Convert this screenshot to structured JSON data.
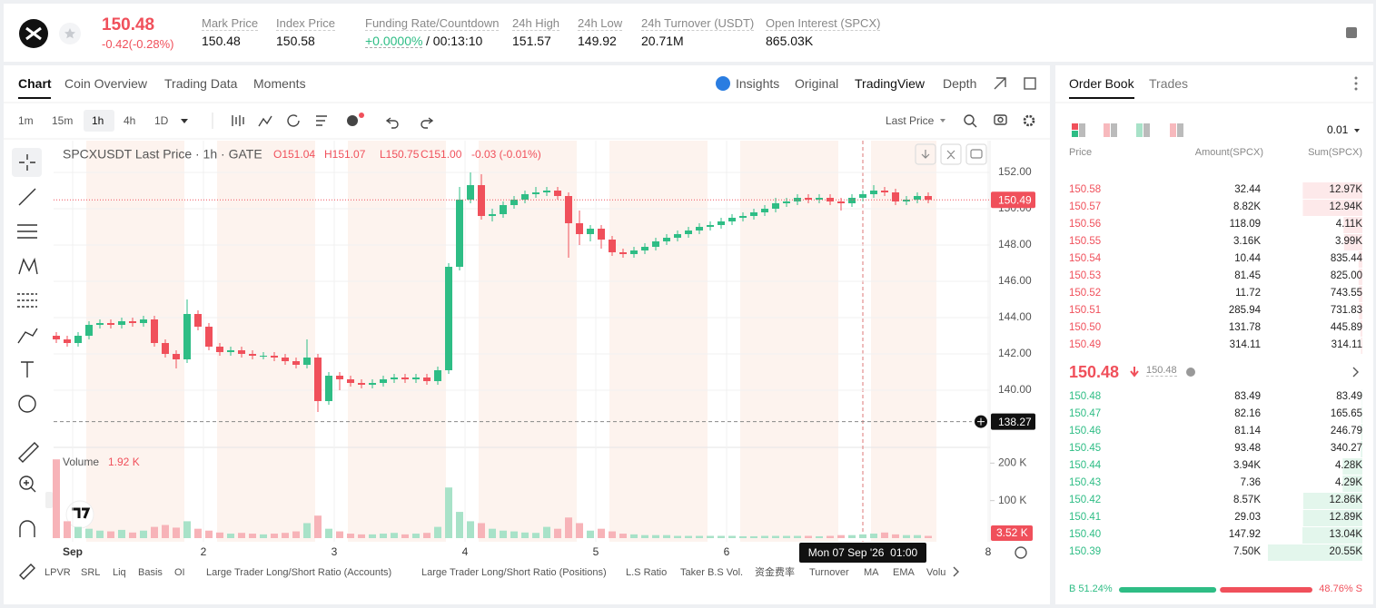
{
  "header": {
    "price": "150.48",
    "change": "-0.42(-0.28%)",
    "stats": [
      {
        "label": "Mark Price",
        "value": "150.48"
      },
      {
        "label": "Index Price",
        "value": "150.58"
      },
      {
        "label": "Funding Rate/Countdown",
        "value": "+0.0000%",
        "countdown": "/ 00:13:10"
      },
      {
        "label": "24h High",
        "value": "151.57"
      },
      {
        "label": "24h Low",
        "value": "149.92"
      },
      {
        "label": "24h Turnover (USDT)",
        "value": "20.71M"
      },
      {
        "label": "Open Interest (SPCX)",
        "value": "865.03K"
      }
    ]
  },
  "tabs": [
    "Chart",
    "Coin Overview",
    "Trading Data",
    "Moments"
  ],
  "view_tabs": [
    "Insights",
    "Original",
    "TradingView",
    "Depth"
  ],
  "intervals": [
    "1m",
    "15m",
    "1h",
    "4h",
    "1D"
  ],
  "price_type": "Last Price",
  "indicators": [
    "LPVR",
    "SRL",
    "Liq",
    "Basis",
    "OI",
    "Large Trader Long/Short Ratio (Accounts)",
    "Large Trader Long/Short Ratio (Positions)",
    "L.S Ratio",
    "Taker B.S Vol.",
    "资金费率",
    "Turnover",
    "MA",
    "EMA",
    "Volu"
  ],
  "chart_data": {
    "type": "candlestick",
    "title": "SPCXUSDT Last Price · 1h · GATE",
    "ohlc_legend": [
      "O151.04",
      "H151.07",
      "L150.75",
      "C151.00",
      "-0.03 (-0.01%)"
    ],
    "up_color": "#2ebd85",
    "down_color": "#f0505b",
    "open": [
      143.0,
      142.8,
      142.6,
      143.0,
      143.6,
      143.7,
      143.6,
      143.8,
      143.7,
      143.9,
      142.6,
      142.0,
      141.7,
      144.2,
      143.5,
      142.4,
      142.1,
      142.2,
      142.0,
      141.9,
      141.9,
      141.8,
      141.6,
      141.4,
      141.8,
      139.4,
      140.8,
      140.6,
      140.4,
      140.3,
      140.4,
      140.6,
      140.7,
      140.6,
      140.7,
      140.5,
      141.1,
      146.8,
      150.5,
      151.3,
      149.6,
      149.7,
      150.2,
      150.5,
      150.8,
      150.9,
      151.0,
      150.7,
      149.2,
      148.6,
      148.9,
      148.3,
      147.6,
      147.5,
      147.7,
      147.9,
      148.2,
      148.4,
      148.6,
      148.8,
      149.0,
      149.1,
      149.3,
      149.5,
      149.6,
      149.8,
      150.0,
      150.3,
      150.4,
      150.6,
      150.5,
      150.6,
      150.4,
      150.3,
      150.6,
      150.8,
      151.0,
      150.9,
      150.4,
      150.5,
      150.7
    ],
    "high": [
      143.2,
      143.0,
      143.2,
      143.8,
      143.9,
      143.9,
      144.0,
      144.0,
      144.1,
      144.1,
      142.8,
      142.2,
      145.0,
      144.4,
      143.7,
      142.6,
      142.4,
      142.4,
      142.2,
      142.1,
      142.1,
      142.0,
      141.8,
      142.8,
      142.0,
      141.0,
      141.0,
      140.8,
      140.6,
      140.6,
      140.8,
      140.9,
      140.9,
      140.9,
      140.9,
      141.3,
      147.0,
      151.2,
      152.0,
      151.9,
      150.0,
      150.4,
      150.7,
      151.0,
      151.2,
      151.2,
      151.2,
      150.9,
      149.9,
      149.1,
      149.1,
      148.5,
      147.8,
      147.9,
      148.1,
      148.4,
      148.6,
      148.8,
      149.0,
      149.2,
      149.3,
      149.5,
      149.7,
      149.8,
      150.0,
      150.2,
      150.6,
      150.6,
      150.8,
      150.8,
      150.8,
      150.8,
      150.6,
      150.8,
      151.0,
      151.3,
      151.2,
      151.1,
      150.7,
      150.9,
      150.9
    ],
    "low": [
      142.6,
      142.4,
      142.4,
      142.8,
      143.4,
      143.4,
      143.4,
      143.5,
      143.5,
      142.4,
      141.8,
      141.2,
      141.5,
      143.3,
      142.2,
      141.9,
      141.9,
      141.8,
      141.7,
      141.7,
      141.6,
      141.4,
      141.2,
      141.2,
      138.8,
      139.2,
      140.0,
      140.2,
      140.1,
      140.1,
      140.2,
      140.4,
      140.4,
      140.4,
      140.3,
      140.3,
      140.9,
      146.6,
      150.3,
      149.4,
      149.3,
      149.5,
      150.0,
      150.3,
      150.6,
      150.7,
      150.5,
      147.3,
      148.0,
      148.2,
      147.8,
      147.4,
      147.3,
      147.3,
      147.5,
      147.7,
      148.0,
      148.2,
      148.4,
      148.6,
      148.8,
      148.9,
      149.1,
      149.3,
      149.4,
      149.6,
      149.8,
      150.1,
      150.2,
      150.3,
      150.3,
      150.2,
      149.9,
      150.1,
      150.4,
      150.6,
      150.7,
      150.2,
      150.2,
      150.3,
      150.3
    ],
    "close": [
      142.8,
      142.6,
      143.0,
      143.6,
      143.7,
      143.6,
      143.8,
      143.7,
      143.9,
      142.6,
      142.0,
      141.7,
      144.2,
      143.5,
      142.4,
      142.1,
      142.2,
      142.0,
      141.9,
      141.9,
      141.8,
      141.6,
      141.4,
      141.8,
      139.4,
      140.8,
      140.6,
      140.4,
      140.3,
      140.4,
      140.6,
      140.7,
      140.6,
      140.7,
      140.5,
      141.1,
      146.8,
      150.5,
      151.3,
      149.6,
      149.7,
      150.2,
      150.5,
      150.8,
      150.9,
      151.0,
      150.7,
      149.2,
      148.6,
      148.9,
      148.3,
      147.6,
      147.5,
      147.7,
      147.9,
      148.2,
      148.4,
      148.6,
      148.8,
      149.0,
      149.1,
      149.3,
      149.5,
      149.6,
      149.8,
      150.0,
      150.3,
      150.4,
      150.6,
      150.5,
      150.6,
      150.4,
      150.3,
      150.6,
      150.8,
      151.0,
      150.9,
      150.4,
      150.5,
      150.7,
      150.49
    ],
    "xlim": [
      -0.5,
      85.5
    ],
    "xticks": [
      {
        "value": 1.5,
        "label": "Sep"
      },
      {
        "value": 13.5,
        "label": "2"
      },
      {
        "value": 25.5,
        "label": "3"
      },
      {
        "value": 37.5,
        "label": "4"
      },
      {
        "value": 49.5,
        "label": "5"
      },
      {
        "value": 61.5,
        "label": "6"
      },
      {
        "value": 85.5,
        "label": "8"
      }
    ],
    "ylim": [
      137,
      153.5
    ],
    "yticks": [
      {
        "value": 140,
        "label": "140.00"
      },
      {
        "value": 142,
        "label": "142.00"
      },
      {
        "value": 144,
        "label": "144.00"
      },
      {
        "value": 146,
        "label": "146.00"
      },
      {
        "value": 148,
        "label": "148.00"
      },
      {
        "value": 150,
        "label": "150.00"
      },
      {
        "value": 152,
        "label": "152.00"
      }
    ],
    "grid": true,
    "volume": {
      "label": "Volume",
      "current": "1.92 K",
      "badge": "3.52 K",
      "values": [
        210,
        45,
        30,
        25,
        20,
        18,
        22,
        15,
        20,
        30,
        35,
        28,
        45,
        25,
        20,
        15,
        12,
        14,
        12,
        10,
        12,
        14,
        18,
        40,
        60,
        25,
        18,
        12,
        10,
        10,
        12,
        14,
        10,
        12,
        14,
        30,
        135,
        70,
        45,
        40,
        25,
        20,
        18,
        15,
        14,
        30,
        25,
        55,
        40,
        20,
        25,
        18,
        12,
        10,
        8,
        8,
        8,
        6,
        6,
        6,
        6,
        6,
        6,
        5,
        5,
        6,
        6,
        6,
        6,
        6,
        5,
        6,
        8,
        8,
        10,
        12,
        15,
        10,
        8,
        8,
        6
      ],
      "ylim": [
        0,
        225
      ],
      "yticks": [
        {
          "value": 100,
          "label": "100 K"
        },
        {
          "value": 200,
          "label": "200 K"
        }
      ]
    },
    "last_price": {
      "value": 150.49,
      "label": "150.49"
    },
    "crosshair": {
      "price": {
        "value": 138.27,
        "label": "138.27"
      },
      "time": "Mon 07 Sep '26  01:00"
    }
  },
  "order_book": {
    "tabs": [
      "Order Book",
      "Trades"
    ],
    "precision": "0.01",
    "columns": [
      "Price",
      "Amount(SPCX)",
      "Sum(SPCX)"
    ],
    "asks": [
      {
        "price": "150.58",
        "amount": "32.44",
        "sum": {
          "value": 12970,
          "label": "12.97K"
        }
      },
      {
        "price": "150.57",
        "amount": "8.82K",
        "sum": {
          "value": 12940,
          "label": "12.94K"
        }
      },
      {
        "price": "150.56",
        "amount": "118.09",
        "sum": {
          "value": 4110,
          "label": "4.11K"
        }
      },
      {
        "price": "150.55",
        "amount": "3.16K",
        "sum": {
          "value": 3990,
          "label": "3.99K"
        }
      },
      {
        "price": "150.54",
        "amount": "10.44",
        "sum": {
          "value": 835.44,
          "label": "835.44"
        }
      },
      {
        "price": "150.53",
        "amount": "81.45",
        "sum": {
          "value": 825,
          "label": "825.00"
        }
      },
      {
        "price": "150.52",
        "amount": "11.72",
        "sum": {
          "value": 743.55,
          "label": "743.55"
        }
      },
      {
        "price": "150.51",
        "amount": "285.94",
        "sum": {
          "value": 731.83,
          "label": "731.83"
        }
      },
      {
        "price": "150.50",
        "amount": "131.78",
        "sum": {
          "value": 445.89,
          "label": "445.89"
        }
      },
      {
        "price": "150.49",
        "amount": "314.11",
        "sum": {
          "value": 314.11,
          "label": "314.11"
        }
      }
    ],
    "mid_price": "150.48",
    "mark_price": "150.48",
    "bids": [
      {
        "price": "150.48",
        "amount": "83.49",
        "sum": {
          "value": 83.49,
          "label": "83.49"
        }
      },
      {
        "price": "150.47",
        "amount": "82.16",
        "sum": {
          "value": 165.65,
          "label": "165.65"
        }
      },
      {
        "price": "150.46",
        "amount": "81.14",
        "sum": {
          "value": 246.79,
          "label": "246.79"
        }
      },
      {
        "price": "150.45",
        "amount": "93.48",
        "sum": {
          "value": 340.27,
          "label": "340.27"
        }
      },
      {
        "price": "150.44",
        "amount": "3.94K",
        "sum": {
          "value": 4280,
          "label": "4.28K"
        }
      },
      {
        "price": "150.43",
        "amount": "7.36",
        "sum": {
          "value": 4290,
          "label": "4.29K"
        }
      },
      {
        "price": "150.42",
        "amount": "8.57K",
        "sum": {
          "value": 12860,
          "label": "12.86K"
        }
      },
      {
        "price": "150.41",
        "amount": "29.03",
        "sum": {
          "value": 12890,
          "label": "12.89K"
        }
      },
      {
        "price": "150.40",
        "amount": "147.92",
        "sum": {
          "value": 13040,
          "label": "13.04K"
        }
      },
      {
        "price": "150.39",
        "amount": "7.50K",
        "sum": {
          "value": 20550,
          "label": "20.55K"
        }
      }
    ],
    "ratio": {
      "buy": {
        "value": 51.24,
        "label": "B 51.24%"
      },
      "sell": {
        "value": 48.76,
        "label": "48.76% S"
      }
    }
  }
}
